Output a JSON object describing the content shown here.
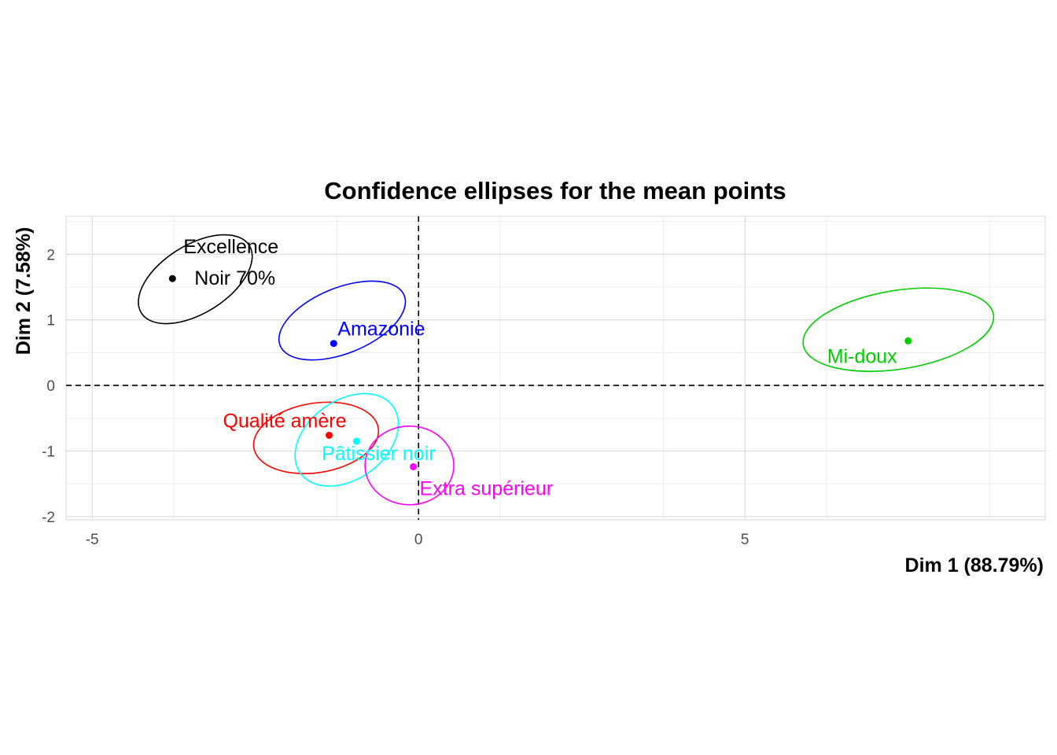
{
  "chart_data": {
    "type": "scatter",
    "title": "Confidence ellipses for the mean points",
    "xlabel": "Dim 1 (88.79%)",
    "ylabel": "Dim 2 (7.58%)",
    "xlim": [
      -5.4,
      9.6
    ],
    "ylim": [
      -2.05,
      2.58
    ],
    "xticks": [
      -5,
      0,
      5
    ],
    "xtick_labels": [
      "-5",
      "0",
      "5"
    ],
    "yticks": [
      -2,
      -1,
      0,
      1,
      2
    ],
    "ytick_labels": [
      "-2",
      "-1",
      "0",
      "1",
      "2"
    ],
    "reference_lines": {
      "x": 0,
      "y": 0,
      "style": "dashed"
    },
    "grid": true,
    "legend": "none",
    "series": [
      {
        "name": "Excellence Noir 70%",
        "label_lines": [
          "Excellence",
          "Noir 70%"
        ],
        "color": "#000000",
        "x": -3.77,
        "y": 1.63,
        "ellipse": {
          "cx": -3.42,
          "cy": 1.62,
          "rx": 1.95,
          "ry": 0.52,
          "angle_deg": 32
        }
      },
      {
        "name": "Amazonie",
        "label_lines": [
          "Amazonie"
        ],
        "color": "#0000ff",
        "x": -1.3,
        "y": 0.64,
        "ellipse": {
          "cx": -1.17,
          "cy": 0.99,
          "rx": 2.05,
          "ry": 0.5,
          "angle_deg": 22
        }
      },
      {
        "name": "Mi-doux",
        "label_lines": [
          "Mi-doux"
        ],
        "color": "#00cd00",
        "x": 7.5,
        "y": 0.68,
        "ellipse": {
          "cx": 7.35,
          "cy": 0.85,
          "rx": 2.95,
          "ry": 0.6,
          "angle_deg": 9
        }
      },
      {
        "name": "Qualité amère",
        "label_lines": [
          "Qualité amère"
        ],
        "color": "#ff0000",
        "x": -1.37,
        "y": -0.76,
        "ellipse": {
          "cx": -1.57,
          "cy": -0.8,
          "rx": 1.93,
          "ry": 0.53,
          "angle_deg": 9
        }
      },
      {
        "name": "Pâtissier noir",
        "label_lines": [
          "Pâtissier noir"
        ],
        "color": "#00ffff",
        "x": -0.95,
        "y": -0.85,
        "ellipse": {
          "cx": -1.1,
          "cy": -0.83,
          "rx": 1.75,
          "ry": 0.6,
          "angle_deg": 36
        }
      },
      {
        "name": "Extra supérieur",
        "label_lines": [
          "Extra supérieur"
        ],
        "color": "#ff00ff",
        "x": -0.08,
        "y": -1.24,
        "ellipse": {
          "cx": -0.14,
          "cy": -1.22,
          "rx": 1.36,
          "ry": 0.6,
          "angle_deg": 0
        }
      }
    ]
  }
}
